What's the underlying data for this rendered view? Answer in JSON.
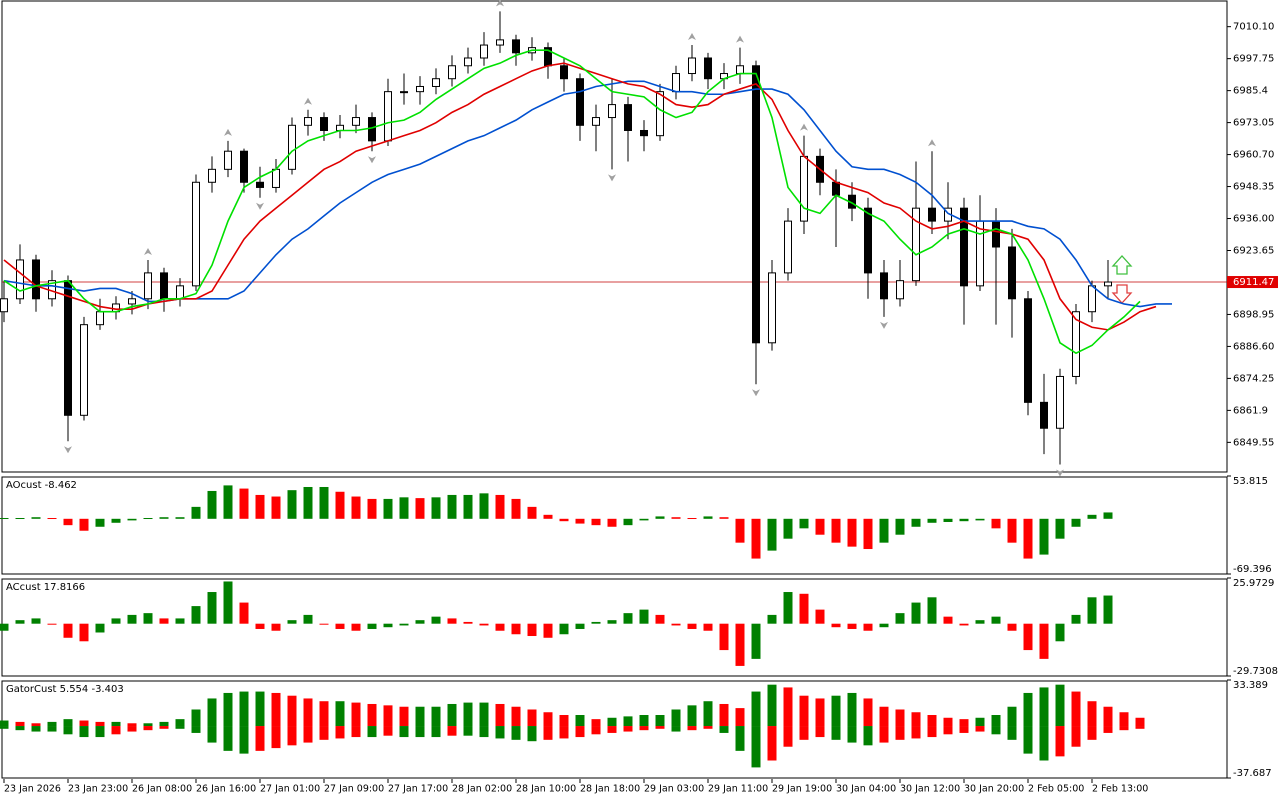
{
  "chart_data": [
    {
      "type": "candlestick",
      "categories": [
        "23 Jan 2026",
        null,
        null,
        null,
        "23 Jan 23:00",
        null,
        null,
        null,
        "26 Jan 08:00",
        null,
        null,
        null,
        "26 Jan 16:00",
        null,
        null,
        null,
        "27 Jan 01:00",
        null,
        null,
        null,
        "27 Jan 09:00",
        null,
        null,
        null,
        "27 Jan 17:00",
        null,
        null,
        null,
        "28 Jan 02:00",
        null,
        null,
        null,
        "28 Jan 10:00",
        null,
        null,
        null,
        "28 Jan 18:00",
        null,
        null,
        null,
        "29 Jan 03:00",
        null,
        null,
        null,
        "29 Jan 11:00",
        null,
        null,
        null,
        "29 Jan 19:00",
        null,
        null,
        null,
        "30 Jan 04:00",
        null,
        null,
        null,
        "30 Jan 12:00",
        null,
        null,
        null,
        "30 Jan 20:00",
        null,
        null,
        null,
        "2 Feb 05:00",
        null,
        null,
        null,
        "2 Feb 13:00",
        null,
        null,
        null,
        null,
        null
      ],
      "open": [
        6900,
        6905,
        6920,
        6905,
        6912,
        6860,
        6895,
        6900,
        6903,
        6905,
        6915,
        6905,
        6910,
        6950,
        6955,
        6962,
        6950,
        6948,
        6955,
        6972,
        6975,
        6970,
        6972,
        6975,
        6966,
        6985,
        6985,
        6987,
        6990,
        6995,
        6998,
        7003,
        7005,
        7000,
        7002,
        6995,
        6990,
        6972,
        6975,
        6980,
        6970,
        6968,
        6985,
        6992,
        6998,
        6990,
        6992,
        6995,
        6888,
        6915,
        6935,
        6960,
        6950,
        6945,
        6940,
        6915,
        6905,
        6912,
        6940,
        6935,
        6940,
        6910,
        6935,
        6925,
        6905,
        6865,
        6855,
        6875,
        6900,
        6910,
        null,
        null,
        null,
        null
      ],
      "high": [
        6912,
        6926,
        6922,
        6916,
        6914,
        6898,
        6905,
        6906,
        6908,
        6920,
        6917,
        6913,
        6953,
        6960,
        6966,
        6963,
        6956,
        6959,
        6975,
        6978,
        6977,
        6976,
        6980,
        6977,
        6990,
        6992,
        6991,
        6994,
        6999,
        7002,
        7008,
        7016,
        7007,
        7006,
        7004,
        6998,
        6992,
        6980,
        6990,
        6983,
        6974,
        6988,
        6995,
        7003,
        7000,
        6996,
        7002,
        6997,
        6920,
        6940,
        6968,
        6963,
        6955,
        6950,
        6944,
        6920,
        6920,
        6958,
        6962,
        6950,
        6944,
        6945,
        6940,
        6932,
        6908,
        6876,
        6878,
        6903,
        6912,
        6920,
        null,
        null,
        null,
        null
      ],
      "low": [
        6896,
        6903,
        6900,
        6902,
        6850,
        6858,
        6893,
        6897,
        6899,
        6901,
        6900,
        6902,
        6908,
        6946,
        6952,
        6946,
        6944,
        6946,
        6953,
        6968,
        6966,
        6967,
        6969,
        6962,
        6964,
        6980,
        6980,
        6984,
        6987,
        6992,
        6995,
        7000,
        6995,
        6997,
        6990,
        6985,
        6966,
        6962,
        6955,
        6958,
        6962,
        6966,
        6982,
        6989,
        6986,
        6986,
        6988,
        6872,
        6885,
        6912,
        6930,
        6945,
        6925,
        6935,
        6905,
        6898,
        6902,
        6910,
        6930,
        6928,
        6895,
        6908,
        6895,
        6890,
        6860,
        6845,
        6841,
        6872,
        6896,
        6905,
        null,
        null,
        null,
        null
      ],
      "close": [
        6905,
        6920,
        6905,
        6912,
        6860,
        6895,
        6900,
        6903,
        6905,
        6915,
        6905,
        6910,
        6950,
        6955,
        6962,
        6950,
        6948,
        6955,
        6972,
        6975,
        6970,
        6972,
        6975,
        6966,
        6985,
        6985,
        6987,
        6990,
        6995,
        6998,
        7003,
        7005,
        7000,
        7002,
        6995,
        6990,
        6972,
        6975,
        6980,
        6970,
        6968,
        6985,
        6992,
        6998,
        6990,
        6992,
        6995,
        6888,
        6915,
        6935,
        6960,
        6950,
        6945,
        6940,
        6915,
        6905,
        6912,
        6940,
        6935,
        6940,
        6910,
        6935,
        6925,
        6905,
        6865,
        6855,
        6875,
        6900,
        6910,
        6911.47,
        null,
        null,
        null,
        null
      ],
      "up_color": "#ffffff",
      "down_color": "#000000",
      "series": [
        {
          "color": "#0050d0",
          "values": [
            6912,
            6911,
            6910,
            6910,
            6909,
            6908,
            6909,
            6909,
            6907,
            6904,
            6904,
            6905,
            6905,
            6905,
            6905,
            6908,
            6915,
            6922,
            6928,
            6932,
            6937,
            6942,
            6946,
            6950,
            6953,
            6955,
            6957,
            6960,
            6963,
            6966,
            6968,
            6971,
            6974,
            6978,
            6981,
            6984,
            6985,
            6987,
            6988,
            6989,
            6989,
            6987,
            6985,
            6985,
            6984,
            6984,
            6985,
            6986,
            6986,
            6984,
            6978,
            6970,
            6962,
            6956,
            6955,
            6955,
            6953,
            6950,
            6945,
            6938,
            6935,
            6935,
            6935,
            6935,
            6933,
            6932,
            6928,
            6920,
            6910,
            6905,
            6903,
            6902,
            6903,
            6903
          ]
        },
        {
          "color": "#e00000",
          "values": [
            6920,
            6915,
            6910,
            6908,
            6906,
            6904,
            6902,
            6901,
            6901,
            6903,
            6904,
            6905,
            6905,
            6908,
            6918,
            6928,
            6935,
            6940,
            6945,
            6950,
            6955,
            6958,
            6962,
            6964,
            6966,
            6968,
            6970,
            6973,
            6977,
            6980,
            6984,
            6987,
            6990,
            6993,
            6995,
            6996,
            6994,
            6992,
            6990,
            6988,
            6987,
            6984,
            6980,
            6979,
            6980,
            6984,
            6986,
            6988,
            6982,
            6970,
            6960,
            6955,
            6950,
            6948,
            6946,
            6942,
            6940,
            6935,
            6932,
            6933,
            6935,
            6932,
            6931,
            6930,
            6928,
            6920,
            6905,
            6897,
            6894,
            6893,
            6896,
            6900,
            6902,
            null
          ]
        },
        {
          "color": "#00e000",
          "values": [
            6912,
            6908,
            6910,
            6911,
            6912,
            6905,
            6900,
            6900,
            6902,
            6903,
            6905,
            6905,
            6907,
            6918,
            6935,
            6948,
            6952,
            6955,
            6962,
            6966,
            6968,
            6970,
            6970,
            6971,
            6973,
            6974,
            6977,
            6982,
            6986,
            6990,
            6994,
            6996,
            6999,
            7001,
            7001,
            6998,
            6995,
            6990,
            6985,
            6984,
            6983,
            6978,
            6975,
            6977,
            6985,
            6990,
            6992,
            6992,
            6975,
            6948,
            6940,
            6938,
            6945,
            6942,
            6938,
            6935,
            6928,
            6922,
            6925,
            6930,
            6932,
            6930,
            6932,
            6930,
            6920,
            6905,
            6888,
            6884,
            6887,
            6893,
            6898,
            6904,
            null,
            null
          ]
        }
      ],
      "ylim": [
        6838.1,
        7020.4
      ],
      "yticks": [
        {
          "value": 7010.1,
          "label": "7010.10"
        },
        6997.75,
        6985.4,
        6973.05,
        {
          "value": 6960.7,
          "label": "6960.70"
        },
        6948.35,
        {
          "value": 6936,
          "label": "6936.00"
        },
        6923.65,
        6898.95,
        {
          "value": 6886.6,
          "label": "6886.60"
        },
        6874.25,
        6861.9,
        6849.55
      ],
      "current_price": 6911.47
    },
    {
      "type": "bar",
      "label": "AOcust -8.462",
      "up_color": "#008000",
      "down_color": "#ff0000",
      "values": [
        1,
        1,
        2,
        1,
        -8,
        -15,
        -10,
        -5,
        -2,
        1,
        2,
        2,
        15,
        35,
        42,
        38,
        30,
        28,
        36,
        40,
        40,
        34,
        28,
        25,
        25,
        27,
        26,
        27,
        30,
        30,
        32,
        30,
        25,
        15,
        5,
        -3,
        -6,
        -8,
        -10,
        -8,
        -2,
        3,
        2,
        1,
        3,
        2,
        -30,
        -50,
        -40,
        -25,
        -12,
        -20,
        -30,
        -35,
        -38,
        -30,
        -20,
        -10,
        -5,
        -4,
        -3,
        -2,
        -12,
        -30,
        -50,
        -45,
        -25,
        -10,
        5,
        8
      ],
      "ylim": [
        -69.396,
        53.815
      ],
      "yticks": [
        53.815,
        -69.396
      ]
    },
    {
      "type": "bar",
      "label": "ACcust 17.8166",
      "up_color": "#008000",
      "down_color": "#ff0000",
      "values": [
        -4,
        2,
        3,
        0,
        -8,
        -10,
        -5,
        3,
        5,
        6,
        3,
        3,
        10,
        18,
        24,
        12,
        -3,
        -4,
        2,
        5,
        0,
        -3,
        -4,
        -3,
        -2,
        -1,
        2,
        4,
        3,
        1,
        -1,
        -4,
        -6,
        -7,
        -8,
        -6,
        -3,
        1,
        2,
        6,
        8,
        5,
        -1,
        -3,
        -4,
        -15,
        -24,
        -20,
        5,
        18,
        17,
        8,
        -2,
        -3,
        -4,
        -2,
        6,
        12,
        15,
        4,
        -1,
        2,
        4,
        -4,
        -15,
        -20,
        -10,
        5,
        15,
        16
      ],
      "ylim": [
        -29.7308,
        25.9729
      ],
      "yticks": [
        25.9729,
        -29.7308
      ]
    },
    {
      "type": "gator",
      "label": "GatorCust 5.554 -3.403",
      "up_color": "#008000",
      "down_color": "#ff0000",
      "series": [
        {
          "values": [
            4,
            3,
            2,
            3,
            5,
            4,
            3,
            3,
            2,
            2,
            3,
            5,
            12,
            20,
            24,
            25,
            25,
            24,
            22,
            20,
            18,
            18,
            17,
            16,
            15,
            14,
            14,
            14,
            16,
            17,
            17,
            16,
            14,
            12,
            10,
            8,
            8,
            5,
            6,
            7,
            8,
            8,
            12,
            15,
            18,
            16,
            13,
            25,
            30,
            28,
            22,
            20,
            22,
            24,
            20,
            14,
            12,
            10,
            8,
            6,
            5,
            6,
            8,
            14,
            24,
            28,
            30,
            25,
            18,
            14,
            10,
            6
          ]
        },
        {
          "values": [
            -2,
            -3,
            -4,
            -4,
            -6,
            -8,
            -8,
            -6,
            -4,
            -3,
            -2,
            -2,
            -5,
            -12,
            -18,
            -20,
            -18,
            -16,
            -14,
            -12,
            -10,
            -9,
            -8,
            -8,
            -7,
            -8,
            -8,
            -8,
            -7,
            -7,
            -8,
            -9,
            -10,
            -11,
            -10,
            -9,
            -8,
            -6,
            -5,
            -4,
            -3,
            -2,
            -4,
            -3,
            -2,
            -5,
            -18,
            -30,
            -25,
            -15,
            -10,
            -8,
            -10,
            -12,
            -14,
            -12,
            -10,
            -9,
            -8,
            -6,
            -5,
            -4,
            -6,
            -10,
            -20,
            -25,
            -22,
            -15,
            -10,
            -5,
            -3,
            -2
          ]
        }
      ],
      "ylim": [
        -37.687,
        33.389
      ],
      "yticks": [
        33.389,
        -37.687
      ]
    }
  ]
}
